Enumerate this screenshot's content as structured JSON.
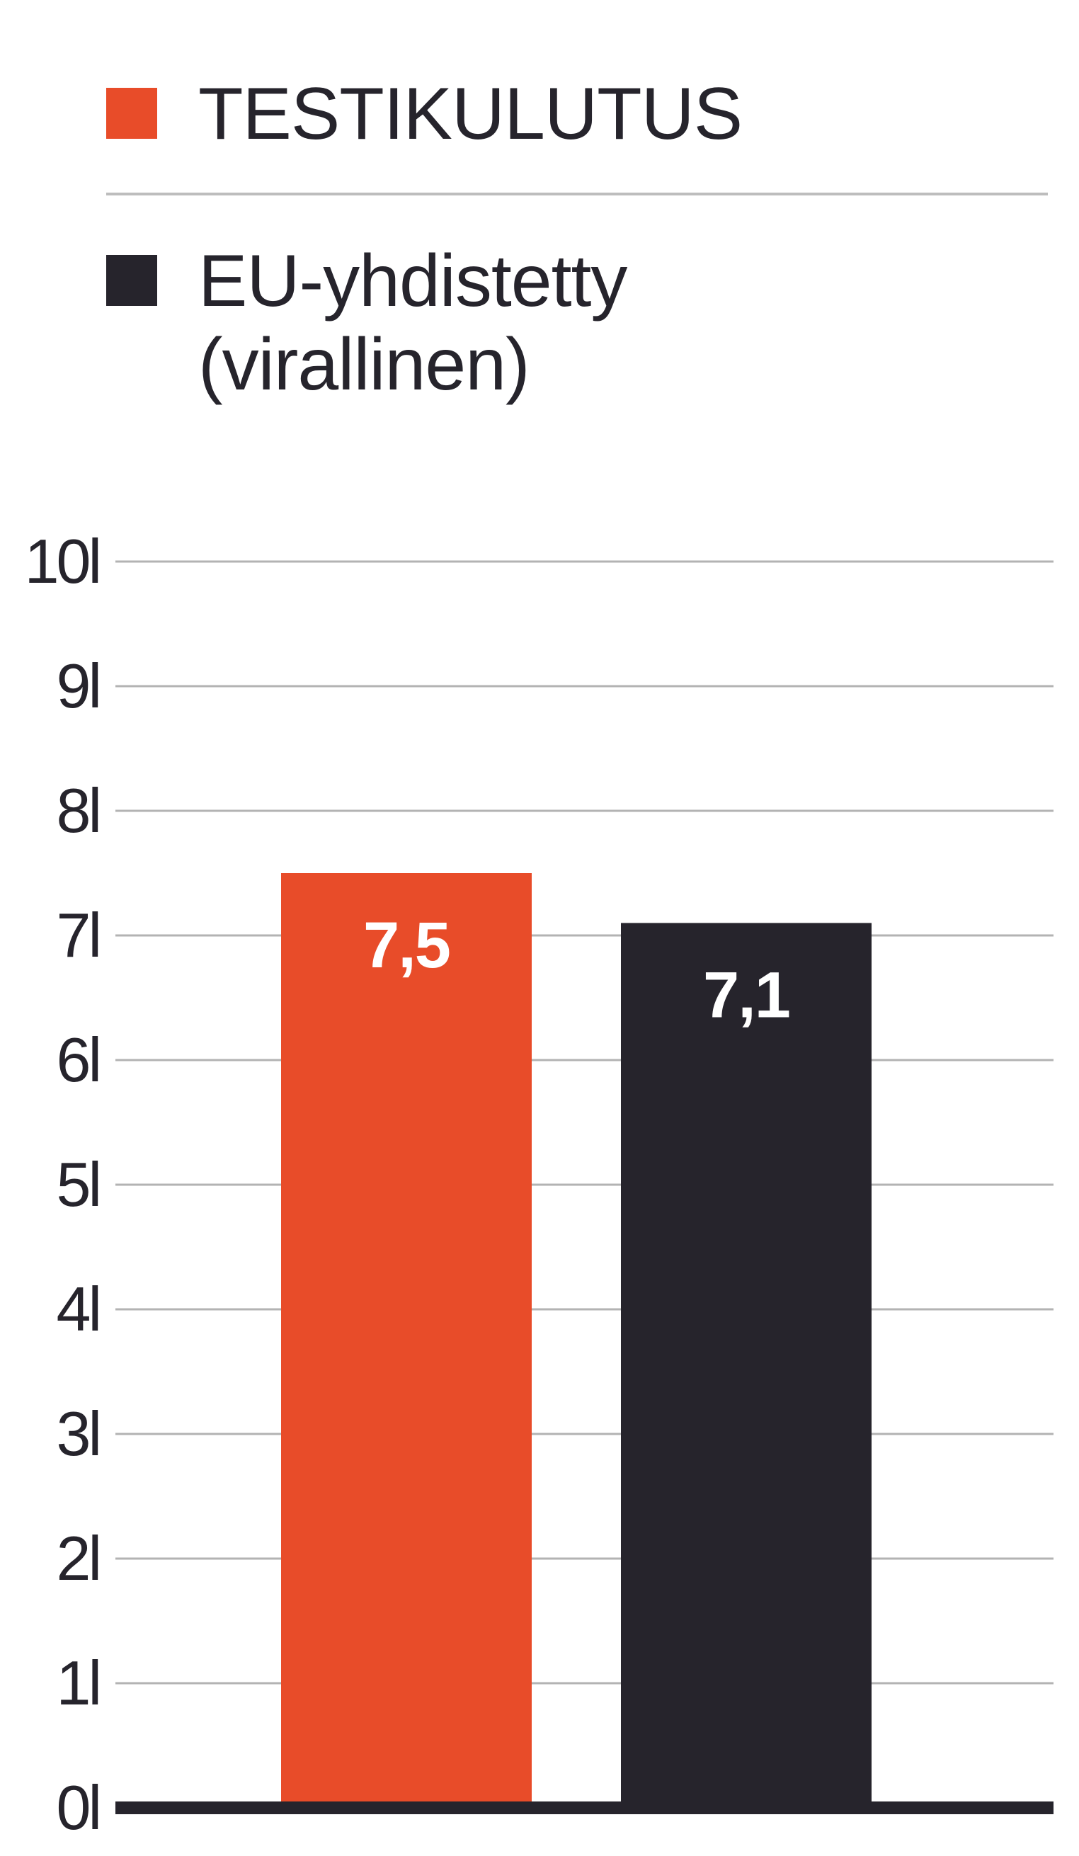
{
  "legend": {
    "items": [
      {
        "label": "TESTIKULUTUS",
        "color": "#e84c29"
      },
      {
        "label_line1": "EU-yhdistetty",
        "label_line2": "(virallinen)",
        "color": "#26242c"
      }
    ]
  },
  "chart_data": {
    "type": "bar",
    "categories": [
      "TESTIKULUTUS",
      "EU-yhdistetty (virallinen)"
    ],
    "values": [
      7.5,
      7.1
    ],
    "value_labels": [
      "7,5",
      "7,1"
    ],
    "colors": [
      "#e84c29",
      "#26242c"
    ],
    "ylim": [
      0,
      10
    ],
    "yticks": [
      0,
      1,
      2,
      3,
      4,
      5,
      6,
      7,
      8,
      9,
      10
    ],
    "ytick_labels": [
      "0l",
      "1l",
      "2l",
      "3l",
      "4l",
      "5l",
      "6l",
      "7l",
      "8l",
      "9l",
      "10l"
    ],
    "grid": true,
    "legend_position": "top"
  }
}
